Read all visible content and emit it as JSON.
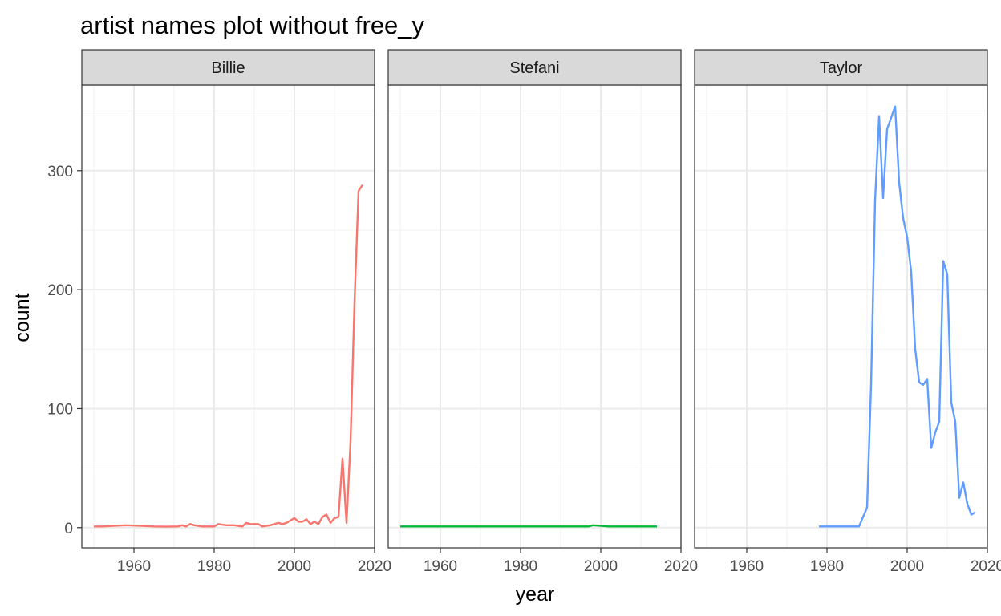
{
  "chart_data": {
    "type": "line",
    "title": "artist names plot without free_y",
    "xlabel": "year",
    "ylabel": "count",
    "xlim": [
      1947,
      2020
    ],
    "ylim": [
      -17,
      372
    ],
    "x_ticks": [
      1960,
      1980,
      2000,
      2020
    ],
    "y_ticks": [
      0,
      100,
      200,
      300
    ],
    "grid": true,
    "legend": "none",
    "facets": [
      {
        "label": "Billie",
        "color": "#F8766D",
        "points": [
          [
            1950,
            1
          ],
          [
            1952,
            1
          ],
          [
            1955,
            1.5
          ],
          [
            1958,
            2
          ],
          [
            1962,
            1.5
          ],
          [
            1965,
            1
          ],
          [
            1968,
            0.8
          ],
          [
            1971,
            1
          ],
          [
            1972,
            2
          ],
          [
            1973,
            1
          ],
          [
            1974,
            3
          ],
          [
            1975,
            2
          ],
          [
            1977,
            1
          ],
          [
            1980,
            1
          ],
          [
            1981,
            3
          ],
          [
            1983,
            2
          ],
          [
            1985,
            2
          ],
          [
            1987,
            1
          ],
          [
            1988,
            4
          ],
          [
            1989,
            3
          ],
          [
            1990,
            3
          ],
          [
            1991,
            3
          ],
          [
            1992,
            1
          ],
          [
            1994,
            2
          ],
          [
            1996,
            4
          ],
          [
            1997,
            3
          ],
          [
            1998,
            4
          ],
          [
            2000,
            8
          ],
          [
            2001,
            5
          ],
          [
            2002,
            5
          ],
          [
            2003,
            7
          ],
          [
            2004,
            3
          ],
          [
            2005,
            5
          ],
          [
            2006,
            3
          ],
          [
            2007,
            9
          ],
          [
            2008,
            11
          ],
          [
            2009,
            4
          ],
          [
            2010,
            8
          ],
          [
            2011,
            9
          ],
          [
            2012,
            58
          ],
          [
            2013,
            4
          ],
          [
            2014,
            72
          ],
          [
            2015,
            190
          ],
          [
            2016,
            283
          ],
          [
            2017,
            288
          ]
        ]
      },
      {
        "label": "Stefani",
        "color": "#00BA38",
        "points": [
          [
            1950,
            1
          ],
          [
            1960,
            1
          ],
          [
            1970,
            1
          ],
          [
            1980,
            1
          ],
          [
            1990,
            1
          ],
          [
            1996,
            1
          ],
          [
            1997,
            1
          ],
          [
            1998,
            2
          ],
          [
            2000,
            1.5
          ],
          [
            2002,
            1
          ],
          [
            2005,
            1
          ],
          [
            2010,
            1
          ],
          [
            2014,
            1
          ]
        ]
      },
      {
        "label": "Taylor",
        "color": "#619CFF",
        "points": [
          [
            1978,
            1
          ],
          [
            1980,
            1
          ],
          [
            1984,
            1
          ],
          [
            1988,
            1
          ],
          [
            1990,
            17
          ],
          [
            1991,
            120
          ],
          [
            1992,
            275
          ],
          [
            1993,
            346
          ],
          [
            1994,
            277
          ],
          [
            1995,
            335
          ],
          [
            1997,
            354
          ],
          [
            1998,
            290
          ],
          [
            1999,
            260
          ],
          [
            2000,
            244
          ],
          [
            2001,
            215
          ],
          [
            2002,
            150
          ],
          [
            2003,
            122
          ],
          [
            2004,
            120
          ],
          [
            2005,
            125
          ],
          [
            2006,
            67
          ],
          [
            2007,
            80
          ],
          [
            2008,
            89
          ],
          [
            2009,
            224
          ],
          [
            2010,
            213
          ],
          [
            2011,
            105
          ],
          [
            2012,
            89
          ],
          [
            2013,
            25
          ],
          [
            2014,
            38
          ],
          [
            2015,
            20
          ],
          [
            2016,
            11
          ],
          [
            2017,
            13
          ]
        ]
      }
    ]
  }
}
